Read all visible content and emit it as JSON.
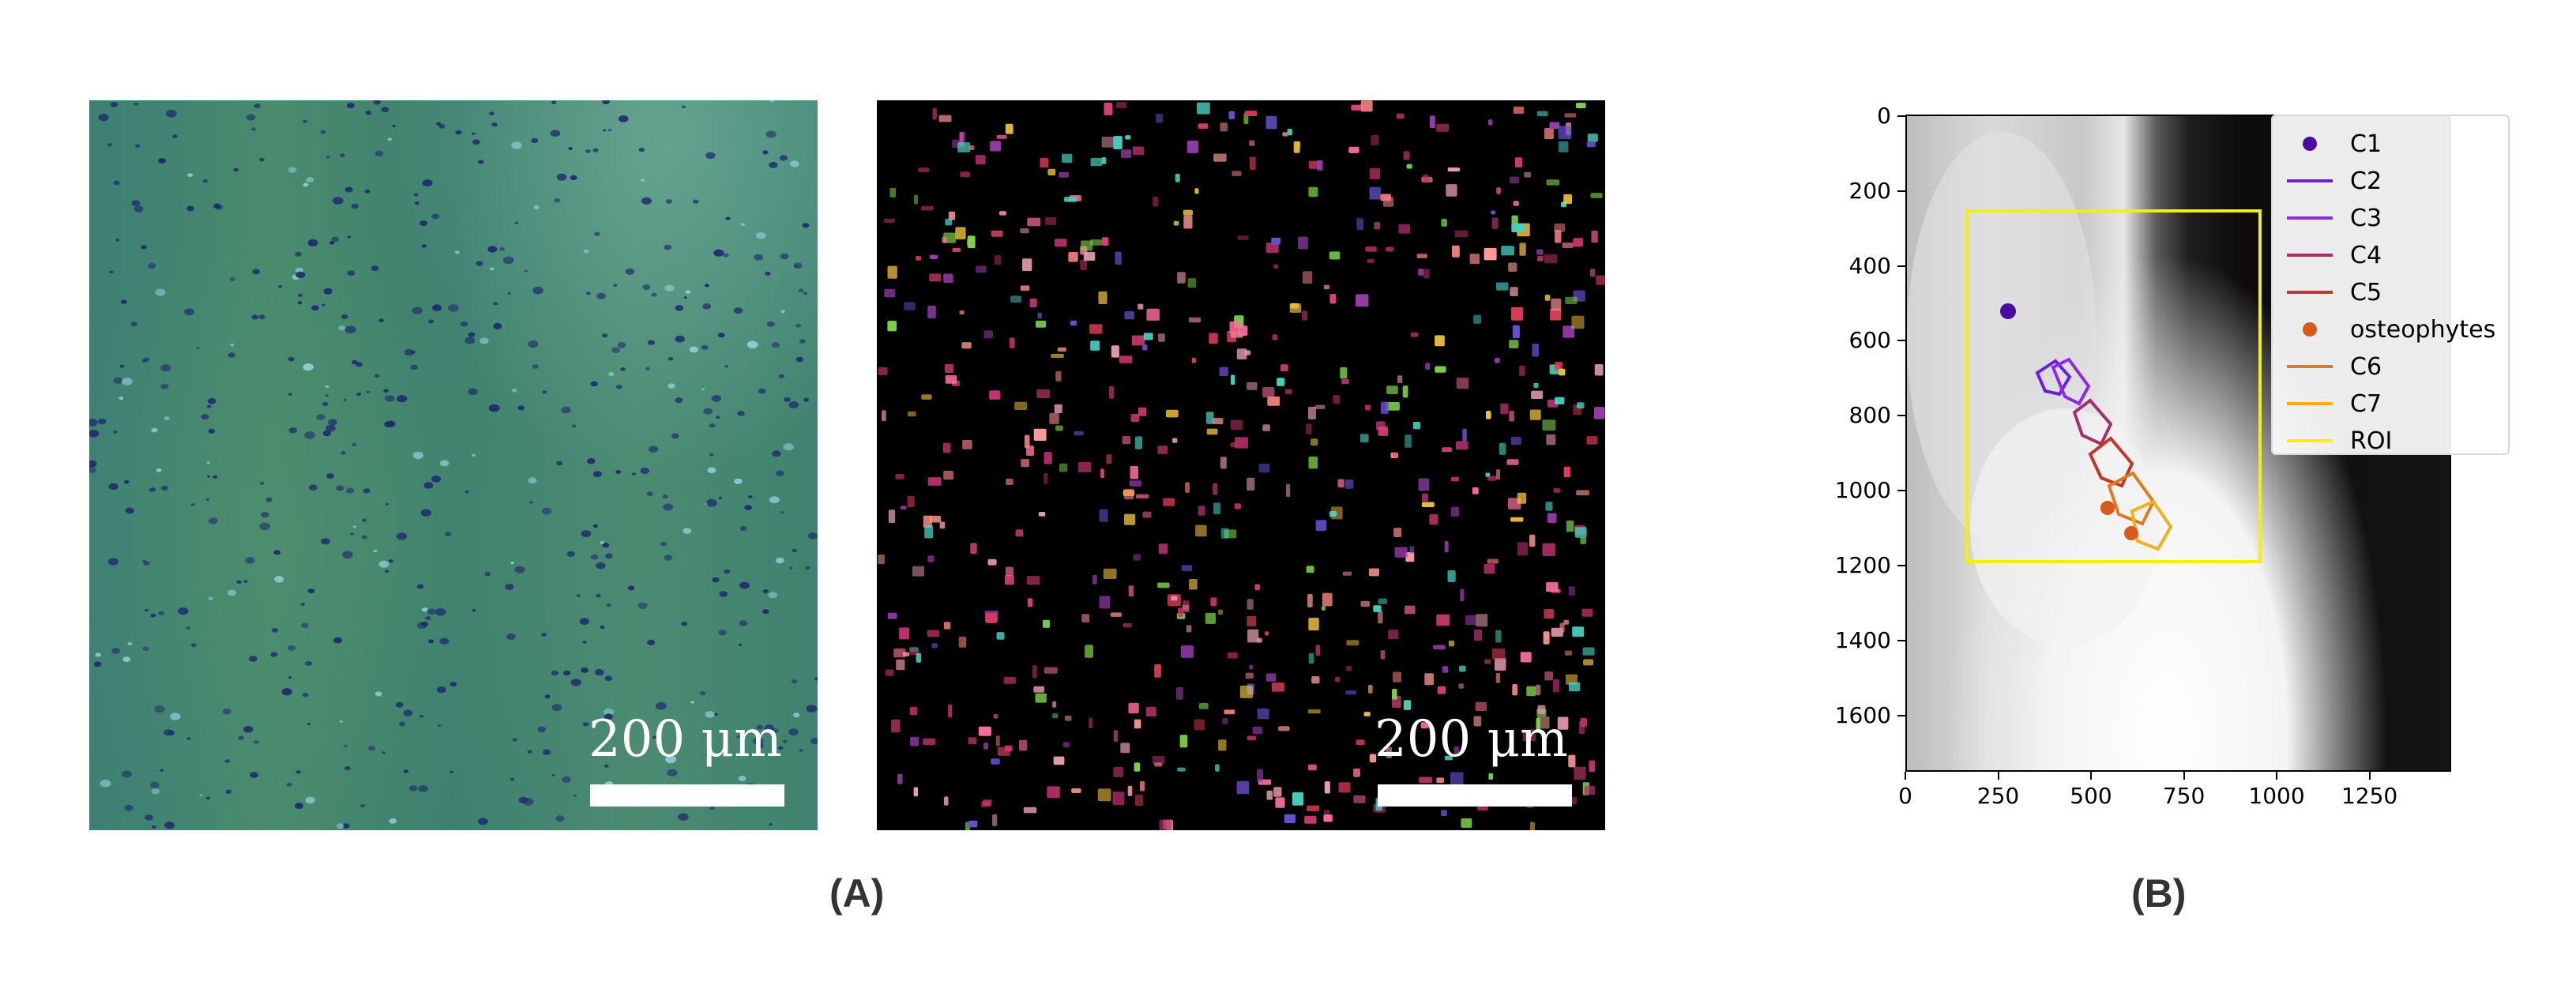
{
  "panel_a": {
    "caption": "(A)",
    "left_image": {
      "scale_label": "200 μm"
    },
    "right_image": {
      "scale_label": "200 μm"
    }
  },
  "panel_b": {
    "caption": "(B)",
    "y_ticks": [
      "0",
      "200",
      "400",
      "600",
      "800",
      "1000",
      "1200",
      "1400",
      "1600"
    ],
    "x_ticks": [
      "0",
      "250",
      "500",
      "750",
      "1000",
      "1250"
    ],
    "legend": [
      {
        "label": "C1",
        "marker": "dot",
        "color": "#4b0aa0"
      },
      {
        "label": "C2",
        "marker": "line",
        "color": "#6a1fe0"
      },
      {
        "label": "C3",
        "marker": "line",
        "color": "#8b2be2"
      },
      {
        "label": "C4",
        "marker": "line",
        "color": "#a3306a"
      },
      {
        "label": "C5",
        "marker": "line",
        "color": "#c0382a"
      },
      {
        "label": "osteophytes",
        "marker": "dot",
        "color": "#d85a1a"
      },
      {
        "label": "C6",
        "marker": "line",
        "color": "#e07a20"
      },
      {
        "label": "C7",
        "marker": "line",
        "color": "#f0b020"
      },
      {
        "label": "ROI",
        "marker": "line",
        "color": "#f5ee10"
      }
    ]
  }
}
